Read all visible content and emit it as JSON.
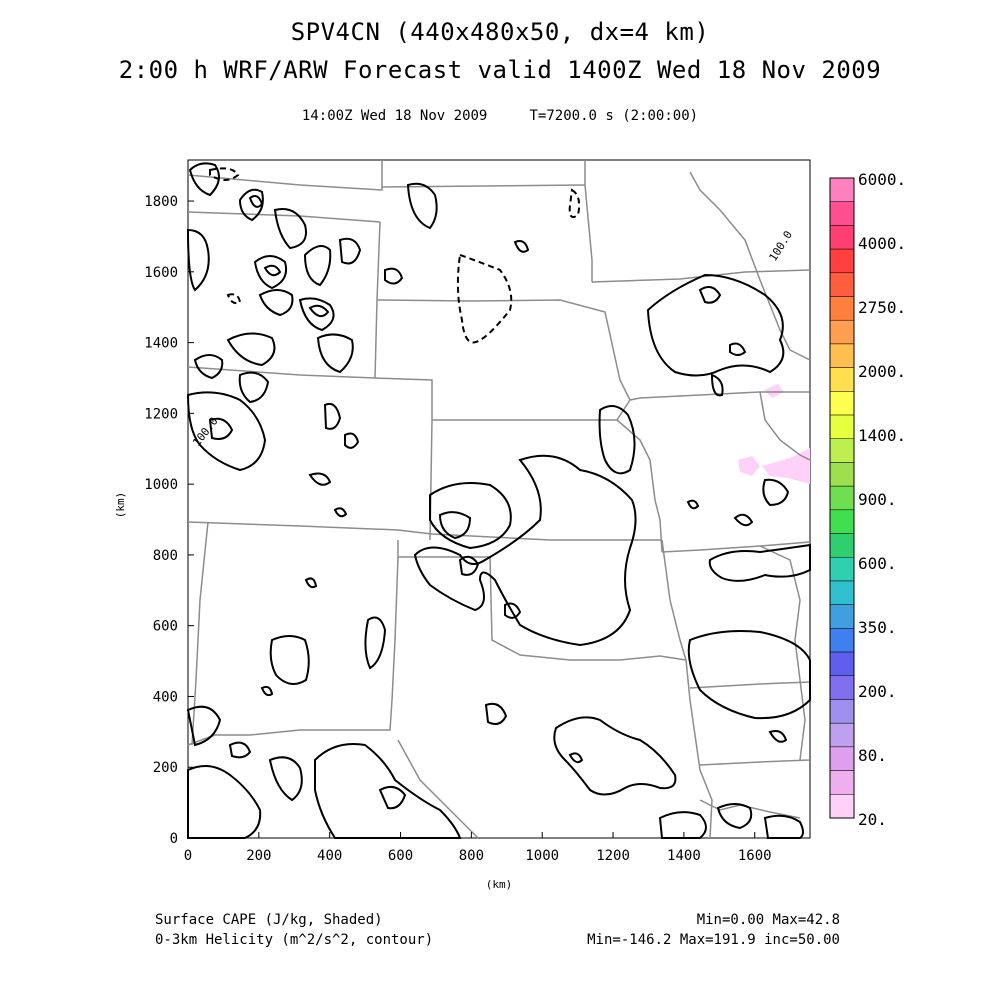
{
  "header": {
    "title_line1": "SPV4CN (440x480x50, dx=4 km)",
    "title_line2": "2:00 h WRF/ARW Forecast valid 1400Z Wed 18 Nov 2009",
    "subtitle": "14:00Z Wed 18 Nov 2009     T=7200.0 s (2:00:00)"
  },
  "footer": {
    "left_line1": "Surface CAPE (J/kg, Shaded)",
    "left_line2": "0-3km Helicity (m^2/s^2, contour)",
    "right_line1": "Min=0.00 Max=42.8",
    "right_line2": "Min=-146.2 Max=191.9 inc=50.00"
  },
  "chart_data": {
    "type": "map",
    "xlabel": "(km)",
    "ylabel": "(km)",
    "xlim": [
      0,
      1756
    ],
    "ylim": [
      0,
      1916
    ],
    "x_ticks": [
      0,
      200,
      400,
      600,
      800,
      1000,
      1200,
      1400,
      1600
    ],
    "y_ticks": [
      0,
      200,
      400,
      600,
      800,
      1000,
      1200,
      1400,
      1600,
      1800
    ],
    "contour_labels": [
      "100.0",
      "100.0"
    ],
    "colorbar": {
      "labels": [
        "6000.",
        "4000.",
        "2750.",
        "2000.",
        "1400.",
        "900.",
        "600.",
        "350.",
        "200.",
        "80.",
        "20."
      ],
      "colors": [
        "#ff7fbf",
        "#ff4f8f",
        "#ff3f6f",
        "#ff3f3f",
        "#ff5f3f",
        "#ff7f3f",
        "#ff9f4f",
        "#ffbf4f",
        "#ffdf4f",
        "#ffff4f",
        "#e6ff3f",
        "#bfef4f",
        "#9fdf4f",
        "#6fdf4f",
        "#3fdf4f",
        "#2fcf6f",
        "#2fcfaf",
        "#2fbfcf",
        "#3f9fdf",
        "#3f7fef",
        "#5f5fef",
        "#7f6fef",
        "#9f8fef",
        "#bf9fef",
        "#df9fef",
        "#efafef",
        "#ffd0f8"
      ]
    }
  }
}
